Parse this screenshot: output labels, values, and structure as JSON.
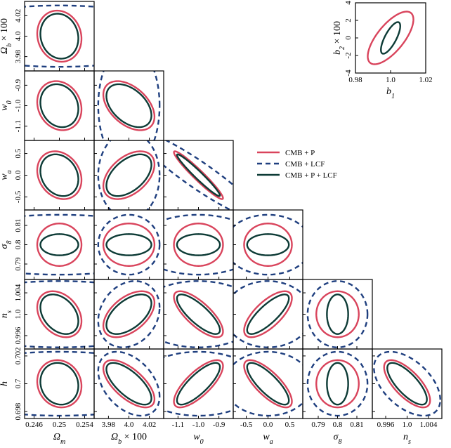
{
  "chart_data": [
    {
      "type": "corner",
      "parameters": [
        {
          "label": [
            "Ω",
            "m"
          ],
          "fiducial": 0.25,
          "lim": [
            0.2445,
            0.2555
          ],
          "ticks": [
            0.246,
            0.25,
            0.254
          ]
        },
        {
          "label": [
            "Ω",
            "b",
            " × 100"
          ],
          "fiducial": 4.0,
          "lim": [
            3.966,
            4.034
          ],
          "ticks": [
            3.98,
            {
              "value": 4.0,
              "label": "4.0"
            },
            4.02
          ]
        },
        {
          "label": [
            "w",
            "0"
          ],
          "fiducial": -1.0,
          "lim": [
            -1.17,
            -0.83
          ],
          "ticks": [
            -1.1,
            {
              "value": -1.0,
              "label": "-1.0"
            },
            -0.9
          ]
        },
        {
          "label": [
            "w",
            "a"
          ],
          "fiducial": 0.0,
          "lim": [
            -0.8,
            0.8
          ],
          "ticks": [
            -0.5,
            {
              "value": 0.0,
              "label": "0.0"
            },
            0.5
          ]
        },
        {
          "label": [
            "σ",
            "8"
          ],
          "fiducial": 0.8,
          "lim": [
            0.782,
            0.818
          ],
          "ticks": [
            0.79,
            0.8,
            0.81
          ]
        },
        {
          "label": [
            "n",
            "s"
          ],
          "fiducial": 1.0,
          "lim": [
            0.9935,
            1.0065
          ],
          "ticks": [
            0.996,
            {
              "value": 1.0,
              "label": "1.0"
            },
            1.004
          ]
        },
        {
          "label": [
            "h"
          ],
          "fiducial": 0.7,
          "lim": [
            0.6975,
            0.7025
          ],
          "ticks": [
            0.698,
            0.7,
            0.702
          ]
        }
      ],
      "series": [
        {
          "name": "CMB + P",
          "color": "#d9445c",
          "dashed": false,
          "sigma": [
            0.0035,
            0.025,
            0.12,
            0.55,
            0.011,
            0.0043,
            0.0017
          ],
          "correlation": [
            [
              -0.1
            ],
            [
              -0.15,
              -0.45
            ],
            [
              -0.2,
              0.45,
              -0.96
            ],
            [
              0,
              0,
              0,
              0
            ],
            [
              -0.3,
              0.5,
              -0.75,
              0.7,
              0
            ],
            [
              -0.1,
              -0.65,
              0.75,
              -0.75,
              0,
              -0.7
            ]
          ]
        },
        {
          "name": "CMB + LCF",
          "color": "#1f3f7f",
          "dashed": true,
          "sigma": [
            0.02,
            0.03,
            0.3,
            1.0,
            0.0155,
            0.0062,
            0.0023
          ],
          "correlation": [
            [
              0
            ],
            [
              0,
              0
            ],
            [
              0,
              0,
              -0.93
            ],
            [
              0,
              0,
              0,
              0
            ],
            [
              0,
              0.2,
              0,
              0,
              0
            ],
            [
              0,
              -0.4,
              0,
              0,
              0,
              -0.5
            ]
          ]
        },
        {
          "name": "CMB + P + LCF",
          "color": "#0d3b36",
          "dashed": false,
          "sigma": [
            0.003,
            0.022,
            0.105,
            0.48,
            0.0055,
            0.0037,
            0.0015
          ],
          "correlation": [
            [
              -0.1
            ],
            [
              -0.15,
              -0.45
            ],
            [
              -0.2,
              0.5,
              -0.97
            ],
            [
              0,
              0,
              0,
              0
            ],
            [
              -0.35,
              0.55,
              -0.8,
              0.8,
              0
            ],
            [
              -0.1,
              -0.7,
              0.8,
              -0.8,
              0,
              -0.75
            ]
          ]
        }
      ]
    },
    {
      "type": "ellipse",
      "xlabel": [
        "b",
        "1"
      ],
      "ylabel": [
        "b",
        "2",
        " × 100"
      ],
      "xlim": [
        0.98,
        1.02
      ],
      "ylim": [
        -4,
        4
      ],
      "xticks": [
        0.98,
        {
          "value": 1.0,
          "label": "1.0"
        },
        1.02
      ],
      "yticks": [
        -4,
        -2,
        0,
        2,
        4
      ],
      "fiducial": [
        1.0,
        0
      ],
      "series": [
        {
          "color": "#d9445c",
          "sigma": [
            0.013,
            3.0
          ],
          "correlation": 0.7
        },
        {
          "color": "#0d3b36",
          "sigma": [
            0.0055,
            1.8
          ],
          "correlation": 0.75
        }
      ]
    }
  ]
}
